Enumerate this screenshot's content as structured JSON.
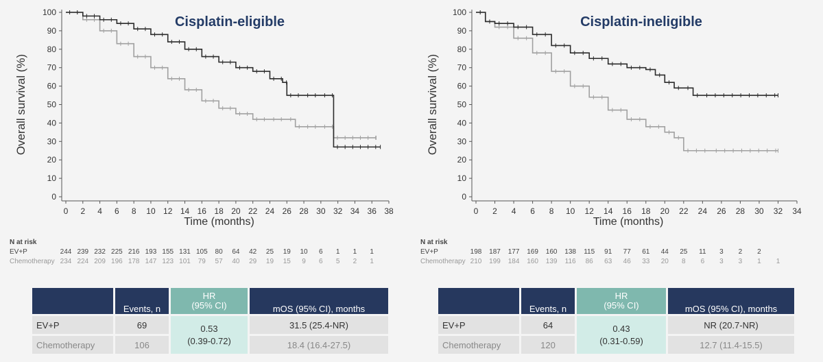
{
  "chart_data": [
    {
      "type": "line",
      "title": "Cisplatin-eligible",
      "xlabel": "Time (months)",
      "ylabel": "Overall survival (%)",
      "xlim": [
        0,
        38
      ],
      "ylim": [
        0,
        100
      ],
      "xticks": [
        0,
        2,
        4,
        6,
        8,
        10,
        12,
        14,
        16,
        18,
        20,
        22,
        24,
        26,
        28,
        30,
        32,
        34,
        36,
        38
      ],
      "yticks": [
        0,
        10,
        20,
        30,
        40,
        50,
        60,
        70,
        80,
        90,
        100
      ],
      "series": [
        {
          "name": "EV+P",
          "color": "#2b2b2b",
          "x": [
            0,
            2,
            4,
            6,
            8,
            10,
            12,
            14,
            16,
            18,
            20,
            22,
            24,
            25.5,
            26,
            28,
            30,
            31.5,
            31.5,
            37
          ],
          "y": [
            100,
            98,
            96,
            94,
            91,
            88,
            84,
            80,
            76,
            73,
            70,
            68,
            64,
            62,
            55,
            55,
            55,
            55,
            27,
            27
          ]
        },
        {
          "name": "Chemotherapy",
          "color": "#a0a0a0",
          "x": [
            0,
            2,
            4,
            6,
            8,
            10,
            12,
            14,
            16,
            18,
            20,
            22,
            24,
            26,
            27,
            28,
            30,
            31.5,
            31.5,
            36.5
          ],
          "y": [
            100,
            96,
            90,
            83,
            76,
            70,
            64,
            58,
            52,
            48,
            45,
            42,
            42,
            42,
            38,
            38,
            38,
            38,
            32,
            32
          ]
        }
      ],
      "at_risk": {
        "times": [
          0,
          2,
          4,
          6,
          8,
          10,
          12,
          14,
          16,
          18,
          20,
          22,
          24,
          26,
          28,
          30,
          32,
          34,
          36
        ],
        "EV+P": [
          244,
          239,
          232,
          225,
          216,
          193,
          155,
          131,
          105,
          80,
          64,
          42,
          25,
          19,
          10,
          6,
          1,
          1,
          1
        ],
        "Chemotherapy": [
          234,
          224,
          209,
          196,
          178,
          147,
          123,
          101,
          79,
          57,
          40,
          29,
          19,
          15,
          9,
          6,
          5,
          2,
          1
        ]
      }
    },
    {
      "type": "line",
      "title": "Cisplatin-ineligible",
      "xlabel": "Time (months)",
      "ylabel": "Overall survival (%)",
      "xlim": [
        0,
        34
      ],
      "ylim": [
        0,
        100
      ],
      "xticks": [
        0,
        2,
        4,
        6,
        8,
        10,
        12,
        14,
        16,
        18,
        20,
        22,
        24,
        26,
        28,
        30,
        32,
        34
      ],
      "yticks": [
        0,
        10,
        20,
        30,
        40,
        50,
        60,
        70,
        80,
        90,
        100
      ],
      "series": [
        {
          "name": "EV+P",
          "color": "#2b2b2b",
          "x": [
            0,
            1,
            2,
            4,
            6,
            8,
            10,
            12,
            14,
            16,
            18,
            19,
            20,
            21,
            22,
            23,
            23,
            24,
            32
          ],
          "y": [
            100,
            95,
            94,
            92,
            88,
            82,
            78,
            75,
            72,
            70,
            69,
            66,
            62,
            59,
            59,
            59,
            55,
            55,
            55
          ]
        },
        {
          "name": "Chemotherapy",
          "color": "#a0a0a0",
          "x": [
            0,
            1,
            2,
            4,
            6,
            8,
            10,
            12,
            14,
            16,
            18,
            20,
            21,
            22,
            22,
            25,
            32
          ],
          "y": [
            100,
            95,
            92,
            86,
            78,
            68,
            60,
            54,
            47,
            42,
            38,
            35,
            32,
            28,
            25,
            25,
            25
          ]
        }
      ],
      "at_risk": {
        "times": [
          0,
          2,
          4,
          6,
          8,
          10,
          12,
          14,
          16,
          18,
          20,
          22,
          24,
          26,
          28,
          30,
          32
        ],
        "EV+P": [
          198,
          187,
          177,
          169,
          160,
          138,
          115,
          91,
          77,
          61,
          44,
          25,
          11,
          3,
          2,
          2,
          null
        ],
        "Chemotherapy": [
          210,
          199,
          184,
          160,
          139,
          116,
          86,
          63,
          46,
          33,
          20,
          8,
          6,
          3,
          3,
          1,
          1
        ]
      }
    }
  ],
  "risk_tables": [
    {
      "header": "N at risk",
      "ev_label": "EV+P",
      "chemo_label": "Chemotherapy"
    },
    {
      "header": "N at risk",
      "ev_label": "EV+P",
      "chemo_label": "Chemotherapy"
    }
  ],
  "result_tables": [
    {
      "col_events": "Events, n",
      "col_hr_1": "HR",
      "col_hr_2": "(95% CI)",
      "col_mos": "mOS (95% CI), months",
      "row1_label": "EV+P",
      "row1_events": "69",
      "row1_mos": "31.5 (25.4-NR)",
      "row2_label": "Chemotherapy",
      "row2_events": "106",
      "row2_mos": "18.4 (16.4-27.5)",
      "hr_value": "0.53",
      "hr_ci": "(0.39-0.72)"
    },
    {
      "col_events": "Events, n",
      "col_hr_1": "HR",
      "col_hr_2": "(95% CI)",
      "col_mos": "mOS (95% CI), months",
      "row1_label": "EV+P",
      "row1_events": "64",
      "row1_mos": "NR (20.7-NR)",
      "row2_label": "Chemotherapy",
      "row2_events": "120",
      "row2_mos": "12.7 (11.4-15.5)",
      "hr_value": "0.43",
      "hr_ci": "(0.31-0.59)"
    }
  ]
}
